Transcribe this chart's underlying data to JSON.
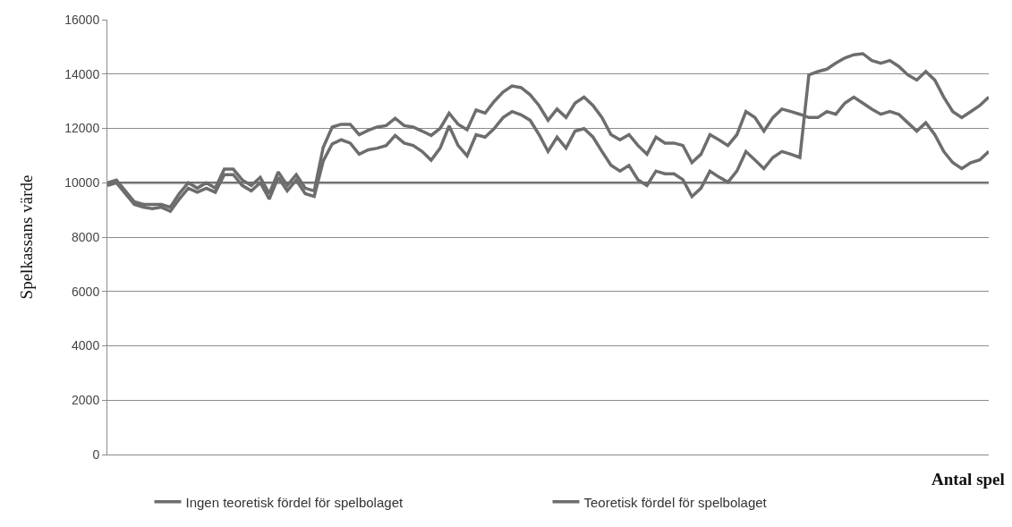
{
  "chart_data": {
    "type": "line",
    "ylabel": "Spelkassans värde",
    "xlabel": "Antal spel",
    "categories": [
      null,
      null,
      null,
      null,
      null,
      null,
      null,
      null,
      null,
      null,
      null,
      null,
      null,
      null,
      null,
      null,
      null,
      null,
      null,
      null,
      null,
      null,
      null,
      null,
      null,
      null,
      null,
      null,
      null,
      null,
      null,
      null,
      null,
      null,
      null,
      null,
      null,
      null,
      null,
      null,
      null,
      null,
      null,
      null,
      null,
      null,
      null,
      null,
      null,
      null,
      null,
      null,
      null,
      null,
      null,
      null,
      null,
      null,
      null,
      null,
      null,
      null,
      null,
      null,
      null,
      null,
      null,
      null,
      null,
      null,
      null,
      null,
      null,
      null,
      null,
      null,
      null,
      null,
      null,
      null,
      null,
      null,
      null,
      null,
      null,
      null,
      null,
      null,
      null,
      null,
      null,
      null,
      null,
      null,
      null,
      null,
      null,
      null,
      null
    ],
    "series": [
      {
        "name": "Ingen teoretisk fördel för spelbolaget",
        "color": "#6d6d6d",
        "values": [
          10000,
          10100,
          9700,
          9300,
          9200,
          9200,
          9200,
          9100,
          9600,
          10000,
          9800,
          10000,
          9800,
          10500,
          10500,
          10100,
          9900,
          10200,
          9600,
          10400,
          9900,
          10300,
          9800,
          9700,
          11300,
          12050,
          12150,
          12150,
          11770,
          11930,
          12050,
          12100,
          12370,
          12100,
          12050,
          11900,
          11740,
          12000,
          12560,
          12150,
          11950,
          12680,
          12560,
          12990,
          13340,
          13560,
          13500,
          13240,
          12840,
          12300,
          12710,
          12400,
          12930,
          13150,
          12840,
          12400,
          11770,
          11580,
          11770,
          11370,
          11050,
          11680,
          11460,
          11460,
          11370,
          10740,
          11050,
          11770,
          11580,
          11370,
          11770,
          12620,
          12400,
          11900,
          12400,
          12710,
          12620,
          12520,
          12400,
          12400,
          12620,
          12520,
          12930,
          13150,
          12930,
          12710,
          12520,
          12620,
          12520,
          12210,
          11900,
          12210,
          11770,
          11150,
          10740,
          10520,
          10740,
          10840,
          11150
        ]
      },
      {
        "name": "Teoretisk fördel för spelbolaget",
        "color": "#6d6d6d",
        "values": [
          9900,
          10000,
          9600,
          9200,
          9100,
          9050,
          9100,
          8950,
          9400,
          9800,
          9650,
          9800,
          9650,
          10300,
          10300,
          9900,
          9700,
          10000,
          9400,
          10200,
          9700,
          10100,
          9600,
          9500,
          10800,
          11430,
          11580,
          11460,
          11050,
          11210,
          11270,
          11370,
          11740,
          11460,
          11370,
          11150,
          10830,
          11270,
          12090,
          11370,
          10990,
          11770,
          11680,
          11990,
          12400,
          12620,
          12500,
          12300,
          11770,
          11150,
          11680,
          11270,
          11900,
          11990,
          11680,
          11150,
          10640,
          10430,
          10640,
          10110,
          9900,
          10430,
          10330,
          10330,
          10110,
          9490,
          9800,
          10430,
          10210,
          10020,
          10430,
          11150,
          10840,
          10520,
          10930,
          11150,
          11050,
          10930,
          13970,
          14090,
          14180,
          14400,
          14590,
          14710,
          14750,
          14500,
          14400,
          14500,
          14280,
          13970,
          13780,
          14090,
          13780,
          13150,
          12620,
          12400,
          12620,
          12840,
          13150
        ]
      }
    ],
    "ylim": [
      0,
      16000
    ],
    "yticks": [
      0,
      2000,
      4000,
      6000,
      8000,
      10000,
      12000,
      14000,
      16000
    ],
    "ref_lines": [
      {
        "axis": "y",
        "value": 10000,
        "color": "#5a5a5a"
      }
    ],
    "grid": "y",
    "legend": "bottom",
    "marker": "none",
    "line_style": "solid"
  }
}
